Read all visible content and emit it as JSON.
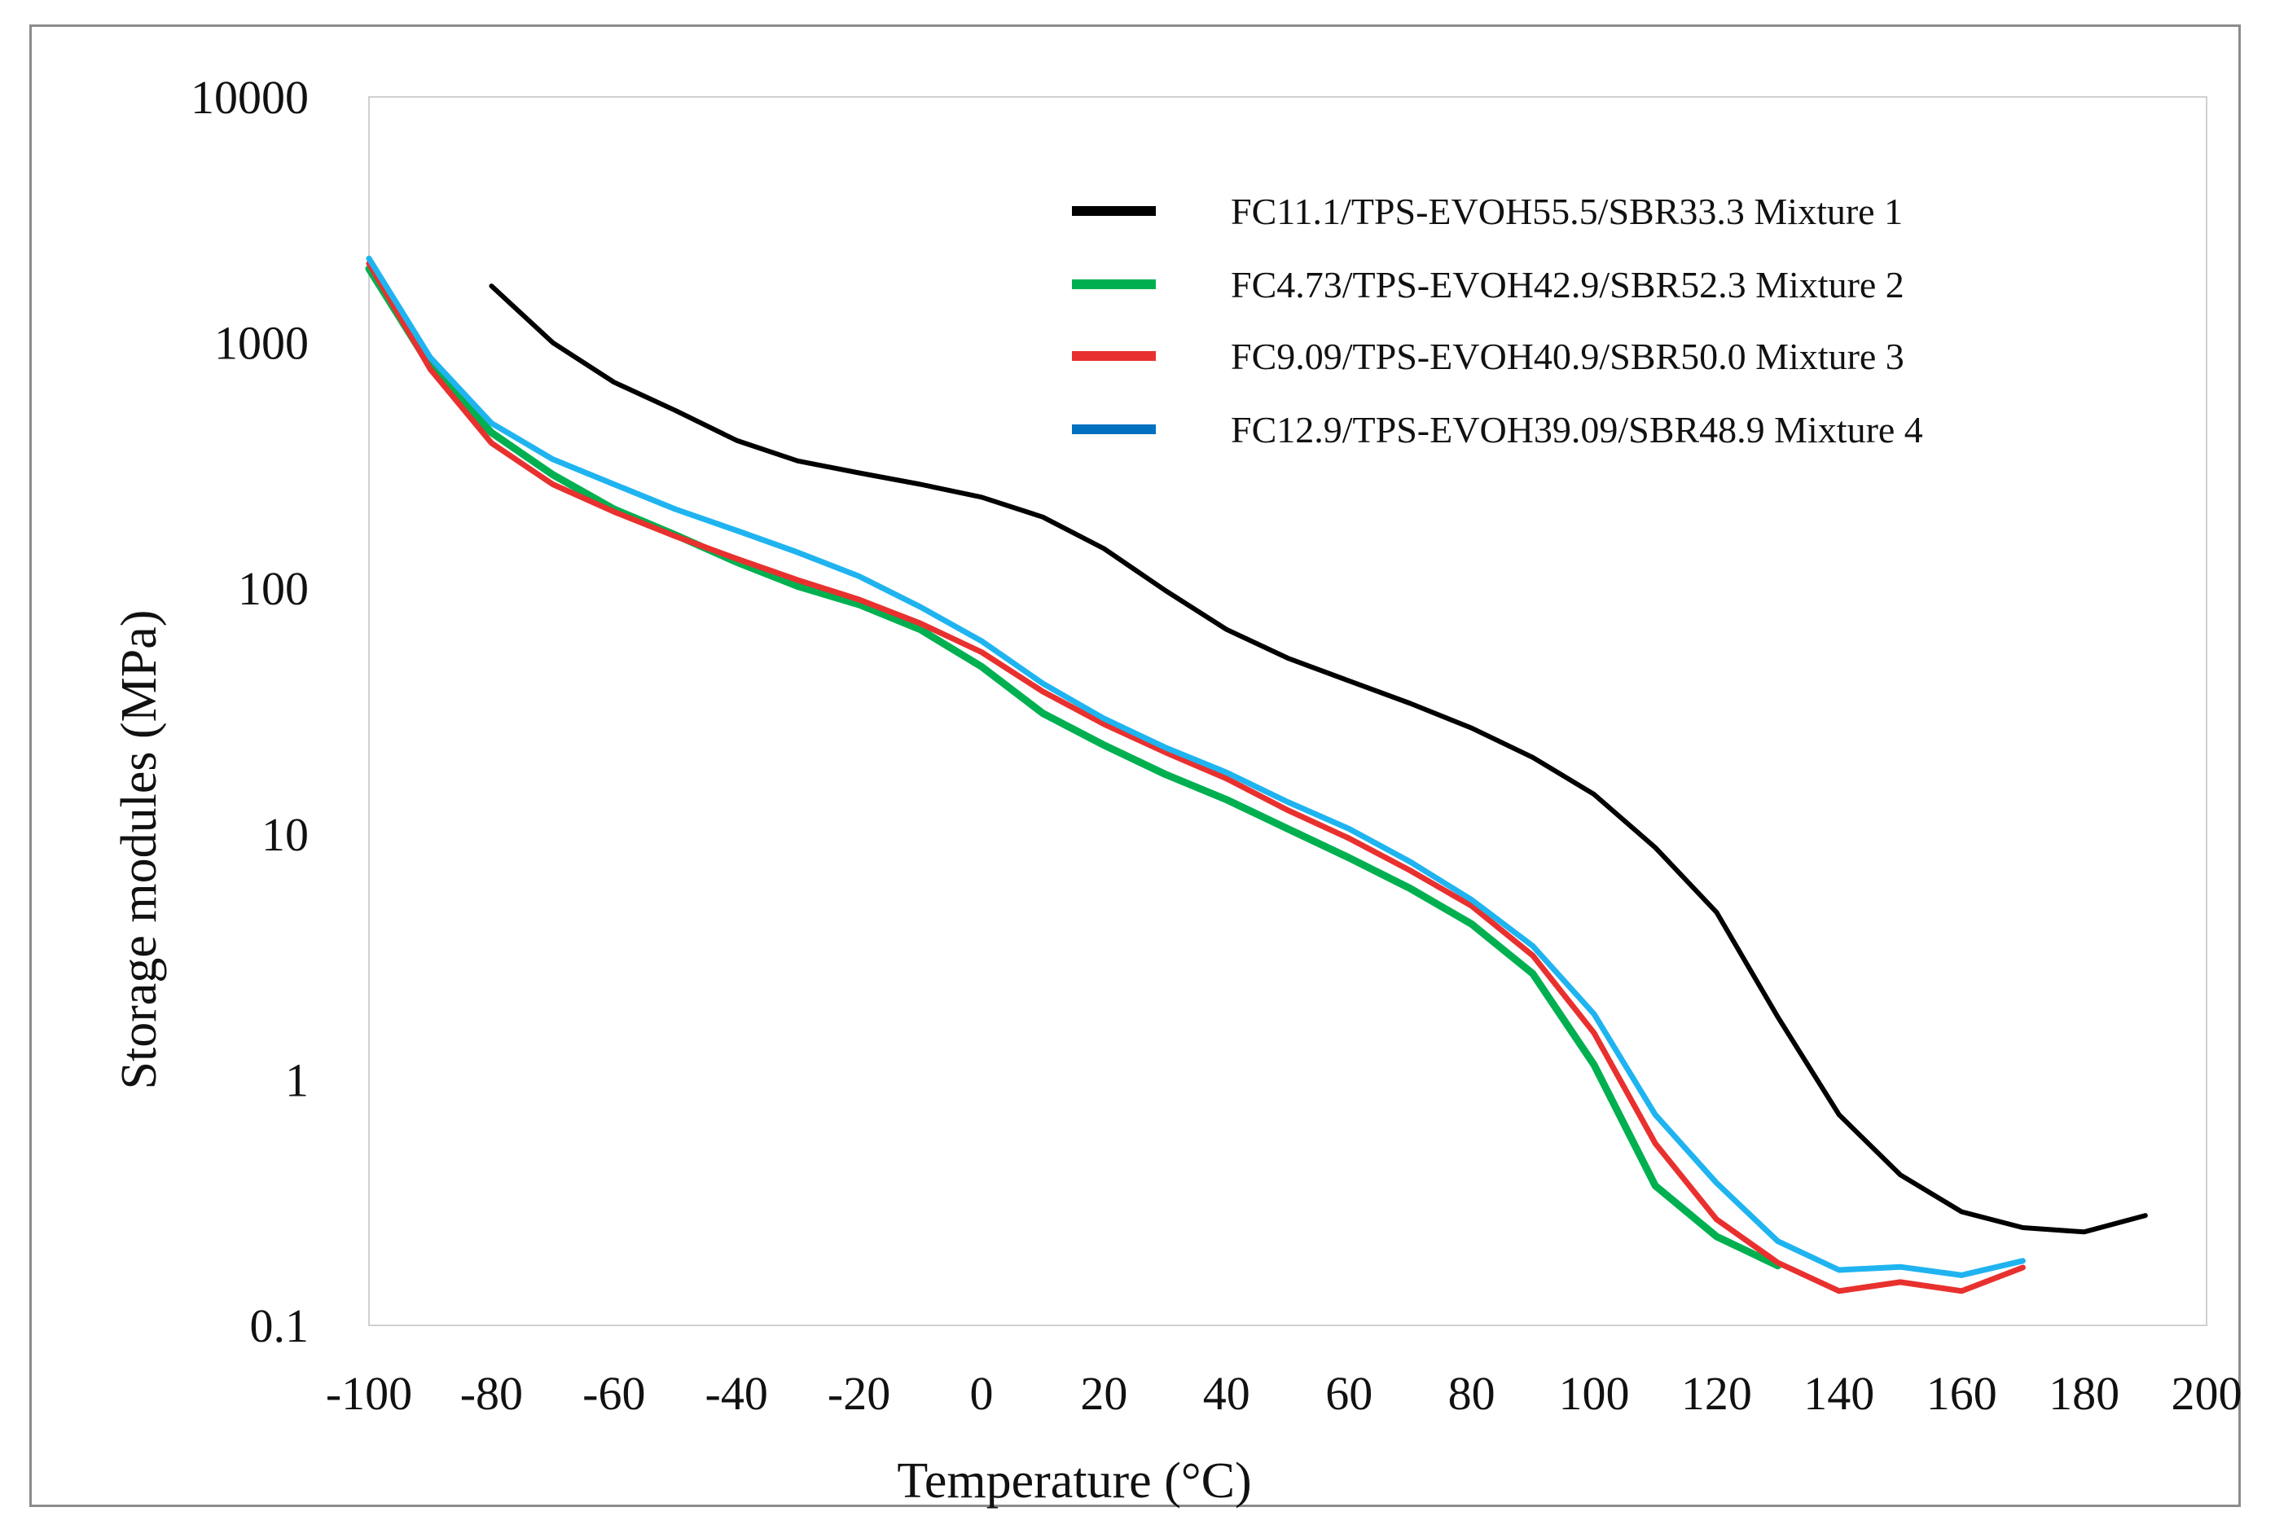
{
  "chart_data": {
    "type": "line",
    "title": "",
    "xlabel": "Temperature (°C)",
    "ylabel": "Storage modules (MPa)",
    "xlim": [
      -100,
      200
    ],
    "ylim": [
      0.1,
      10000
    ],
    "yscale": "log",
    "x_ticks": [
      "-100",
      "-80",
      "-60",
      "-40",
      "-20",
      "0",
      "20",
      "40",
      "60",
      "80",
      "100",
      "120",
      "140",
      "160",
      "180",
      "200"
    ],
    "y_ticks": [
      "0.1",
      "1",
      "10",
      "100",
      "1000",
      "10000"
    ],
    "grid": false,
    "legend_position": "top-right",
    "series": [
      {
        "name": "FC11.1/TPS-EVOH55.5/SBR33.3 Mixture 1",
        "color": "#000000",
        "points": [
          [
            -80,
            1700
          ],
          [
            -70,
            1000
          ],
          [
            -60,
            690
          ],
          [
            -50,
            530
          ],
          [
            -40,
            400
          ],
          [
            -30,
            330
          ],
          [
            -20,
            295
          ],
          [
            -10,
            265
          ],
          [
            0,
            235
          ],
          [
            10,
            195
          ],
          [
            20,
            145
          ],
          [
            30,
            98
          ],
          [
            40,
            68
          ],
          [
            50,
            52
          ],
          [
            60,
            42
          ],
          [
            70,
            34
          ],
          [
            80,
            27
          ],
          [
            90,
            20.5
          ],
          [
            100,
            14.5
          ],
          [
            110,
            8.8
          ],
          [
            120,
            4.8
          ],
          [
            130,
            1.8
          ],
          [
            140,
            0.72
          ],
          [
            150,
            0.41
          ],
          [
            160,
            0.29
          ],
          [
            170,
            0.25
          ],
          [
            180,
            0.24
          ],
          [
            190,
            0.28
          ]
        ]
      },
      {
        "name": "FC4.73/TPS-EVOH42.9/SBR52.3 Mixture 2",
        "color": "#00b050",
        "points": [
          [
            -100,
            2000
          ],
          [
            -90,
            800
          ],
          [
            -80,
            430
          ],
          [
            -70,
            290
          ],
          [
            -60,
            210
          ],
          [
            -50,
            165
          ],
          [
            -40,
            128
          ],
          [
            -30,
            102
          ],
          [
            -20,
            86
          ],
          [
            -10,
            68
          ],
          [
            0,
            48
          ],
          [
            10,
            31
          ],
          [
            20,
            23
          ],
          [
            30,
            17.5
          ],
          [
            40,
            13.8
          ],
          [
            50,
            10.5
          ],
          [
            60,
            8.0
          ],
          [
            70,
            6.0
          ],
          [
            80,
            4.3
          ],
          [
            90,
            2.7
          ],
          [
            100,
            1.15
          ],
          [
            110,
            0.37
          ],
          [
            120,
            0.23
          ],
          [
            130,
            0.175
          ]
        ]
      },
      {
        "name": "FC9.09/TPS-EVOH40.9/SBR50.0 Mixture 3",
        "color": "#e8312f",
        "points": [
          [
            -100,
            2100
          ],
          [
            -90,
            780
          ],
          [
            -80,
            390
          ],
          [
            -70,
            265
          ],
          [
            -60,
            205
          ],
          [
            -50,
            163
          ],
          [
            -40,
            132
          ],
          [
            -30,
            108
          ],
          [
            -20,
            90
          ],
          [
            -10,
            72
          ],
          [
            0,
            55
          ],
          [
            10,
            38
          ],
          [
            20,
            28
          ],
          [
            30,
            21.5
          ],
          [
            40,
            16.8
          ],
          [
            50,
            12.5
          ],
          [
            60,
            9.6
          ],
          [
            70,
            7.1
          ],
          [
            80,
            5.1
          ],
          [
            90,
            3.2
          ],
          [
            100,
            1.55
          ],
          [
            110,
            0.55
          ],
          [
            120,
            0.27
          ],
          [
            130,
            0.18
          ],
          [
            140,
            0.138
          ],
          [
            150,
            0.15
          ],
          [
            160,
            0.138
          ],
          [
            170,
            0.172
          ]
        ]
      },
      {
        "name": "FC12.9/TPS-EVOH39.09/SBR48.9 Mixture 4",
        "color": "#1fb4f0",
        "legend_color": "#0070c0",
        "points": [
          [
            -100,
            2200
          ],
          [
            -90,
            870
          ],
          [
            -80,
            470
          ],
          [
            -70,
            335
          ],
          [
            -60,
            265
          ],
          [
            -50,
            210
          ],
          [
            -40,
            172
          ],
          [
            -30,
            140
          ],
          [
            -20,
            112
          ],
          [
            -10,
            84
          ],
          [
            0,
            61
          ],
          [
            10,
            41
          ],
          [
            20,
            29.5
          ],
          [
            30,
            22.5
          ],
          [
            40,
            17.8
          ],
          [
            50,
            13.5
          ],
          [
            60,
            10.5
          ],
          [
            70,
            7.7
          ],
          [
            80,
            5.4
          ],
          [
            90,
            3.5
          ],
          [
            100,
            1.85
          ],
          [
            110,
            0.72
          ],
          [
            120,
            0.38
          ],
          [
            130,
            0.22
          ],
          [
            140,
            0.168
          ],
          [
            150,
            0.173
          ],
          [
            160,
            0.16
          ],
          [
            170,
            0.183
          ]
        ]
      }
    ]
  }
}
